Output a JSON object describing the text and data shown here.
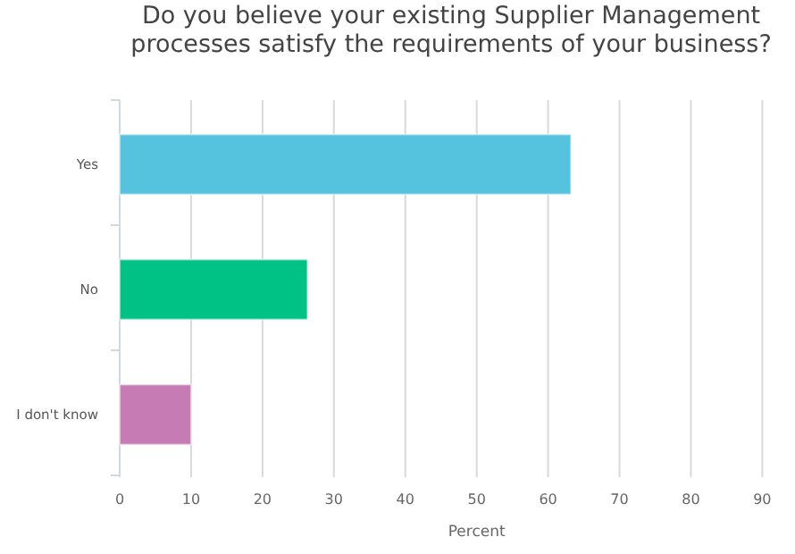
{
  "chart_data": {
    "type": "bar",
    "orientation": "horizontal",
    "title": "Do you believe your existing Supplier Management processes satisfy the requirements of your business?",
    "xlabel": "Percent",
    "categories": [
      "Yes",
      "No",
      "I don't know"
    ],
    "values": [
      63.2,
      26.3,
      10
    ],
    "colors": [
      "#55c3dd",
      "#00c284",
      "#c77bb5"
    ],
    "xlim": [
      0,
      90
    ],
    "xticks": [
      0,
      10,
      20,
      30,
      40,
      50,
      60,
      70,
      80,
      90
    ],
    "grid": "x"
  }
}
